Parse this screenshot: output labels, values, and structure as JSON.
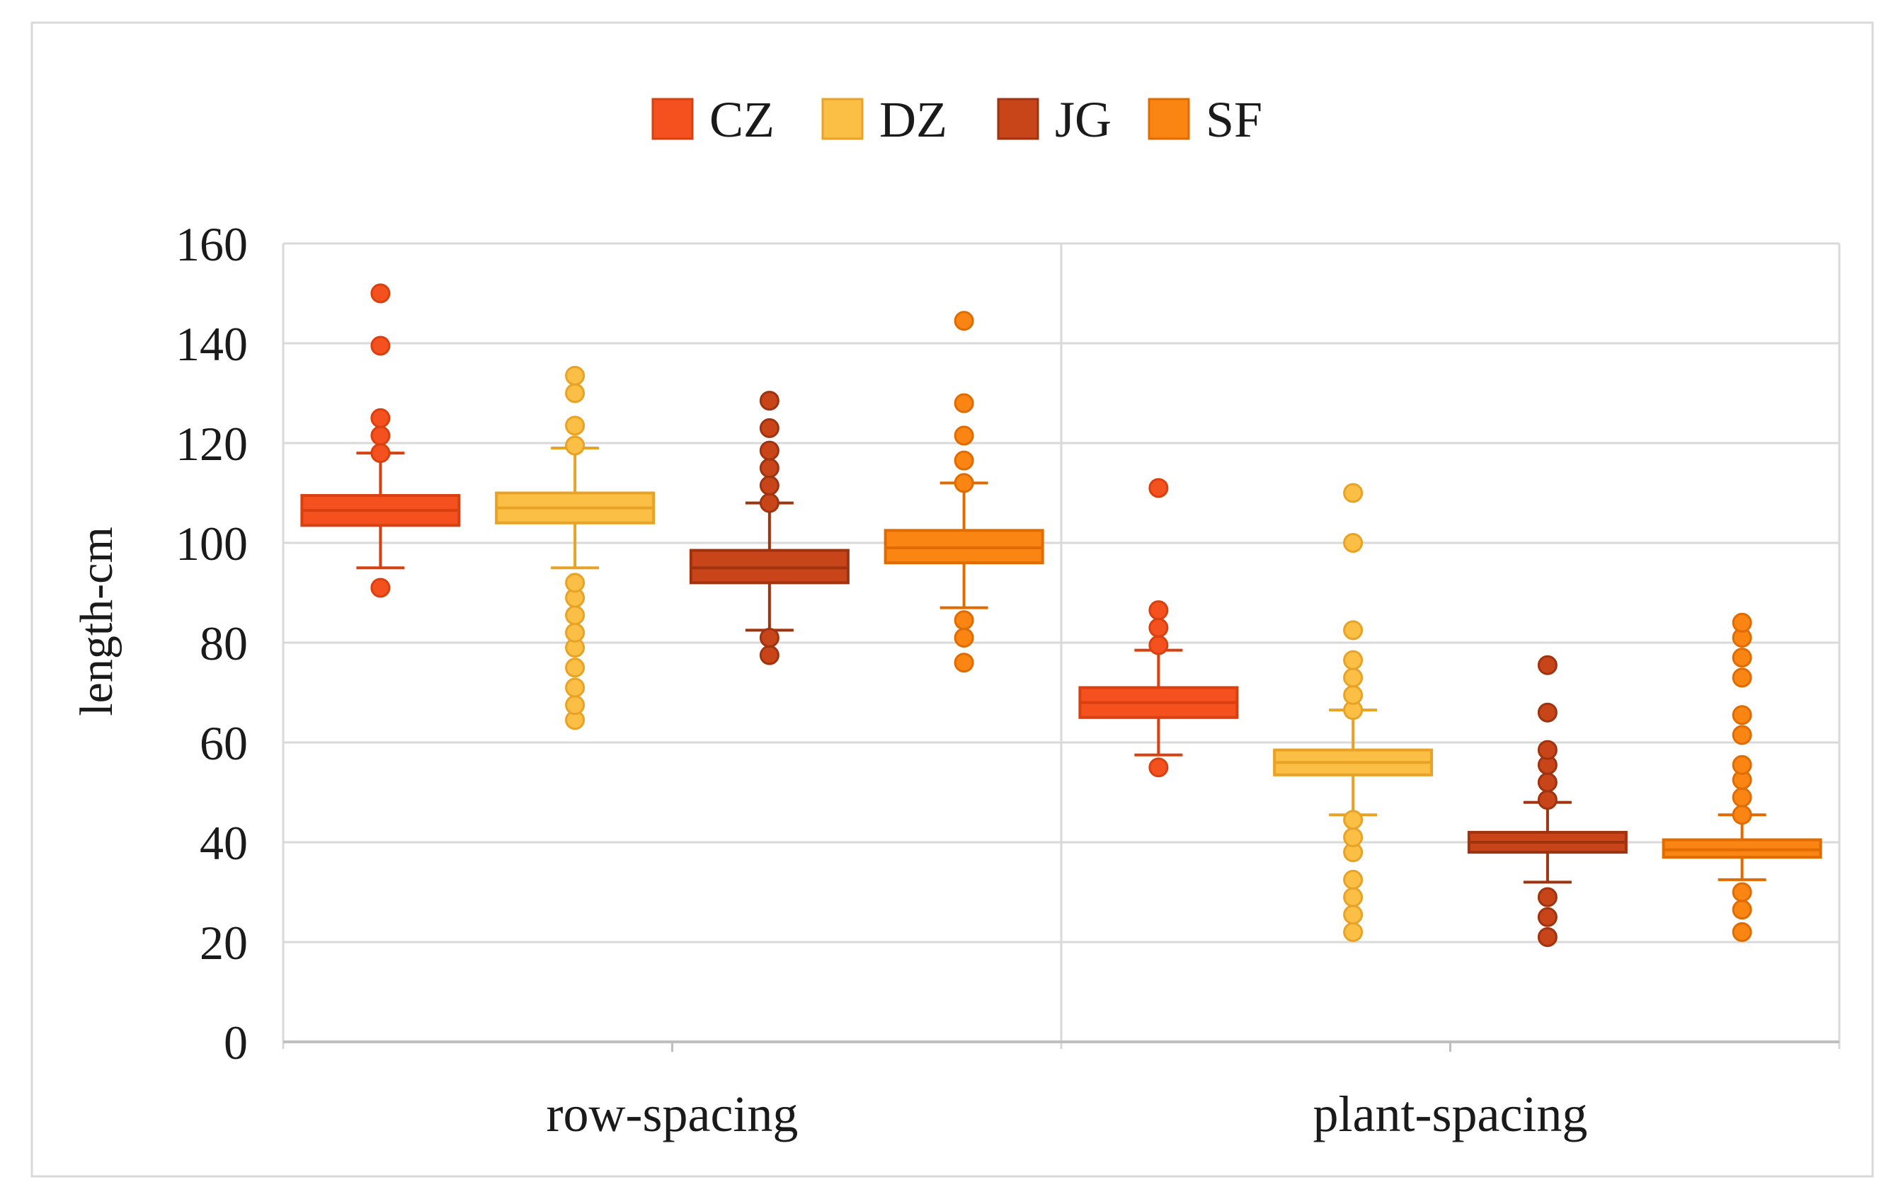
{
  "chart_data": {
    "type": "boxplot",
    "title": "",
    "xlabel": "",
    "ylabel": "length-cm",
    "ylim": [
      0,
      160
    ],
    "yticks": [
      0,
      20,
      40,
      60,
      80,
      100,
      120,
      140,
      160
    ],
    "grid": true,
    "legend_position": "top-center",
    "categories": [
      "row-spacing",
      "plant-spacing"
    ],
    "series": [
      {
        "name": "CZ",
        "color": "#f4511e",
        "stroke": "#d8400f",
        "boxes": [
          {
            "whisker_low": 95,
            "q1": 103.5,
            "median": 106.5,
            "q3": 109.5,
            "whisker_high": 118,
            "outliers": [
              91,
              118,
              121.5,
              125,
              139.5,
              150
            ]
          },
          {
            "whisker_low": 57.5,
            "q1": 65,
            "median": 68,
            "q3": 71,
            "whisker_high": 78.5,
            "outliers": [
              55,
              79.5,
              83,
              86.5,
              111
            ]
          }
        ]
      },
      {
        "name": "DZ",
        "color": "#fbbf45",
        "stroke": "#e8a225",
        "boxes": [
          {
            "whisker_low": 95,
            "q1": 104,
            "median": 107,
            "q3": 110,
            "whisker_high": 119,
            "outliers": [
              64.5,
              67.5,
              71,
              75,
              79,
              82,
              85.5,
              89,
              92,
              119.5,
              123.5,
              130,
              133.5
            ]
          },
          {
            "whisker_low": 45.5,
            "q1": 53.5,
            "median": 56,
            "q3": 58.5,
            "whisker_high": 66.5,
            "outliers": [
              22,
              25.5,
              29,
              32.5,
              38,
              41,
              44.5,
              66.5,
              69.5,
              73,
              76.5,
              82.5,
              100,
              110
            ]
          }
        ]
      },
      {
        "name": "JG",
        "color": "#c8451a",
        "stroke": "#a0330f",
        "boxes": [
          {
            "whisker_low": 82.5,
            "q1": 92,
            "median": 95,
            "q3": 98.5,
            "whisker_high": 108,
            "outliers": [
              77.5,
              81,
              108,
              111.5,
              115,
              118.5,
              123,
              128.5
            ]
          },
          {
            "whisker_low": 32,
            "q1": 38,
            "median": 40,
            "q3": 42,
            "whisker_high": 48,
            "outliers": [
              21,
              25,
              29,
              48.5,
              52,
              55.5,
              58.5,
              66,
              75.5
            ]
          }
        ]
      },
      {
        "name": "SF",
        "color": "#fb8512",
        "stroke": "#e06c00",
        "boxes": [
          {
            "whisker_low": 87,
            "q1": 96,
            "median": 99,
            "q3": 102.5,
            "whisker_high": 112,
            "outliers": [
              76,
              81,
              84.5,
              112,
              116.5,
              121.5,
              128,
              144.5
            ]
          },
          {
            "whisker_low": 32.5,
            "q1": 37,
            "median": 38.5,
            "q3": 40.5,
            "whisker_high": 45.5,
            "outliers": [
              22,
              26.5,
              30,
              45.5,
              49,
              52.5,
              55.5,
              61.5,
              65.5,
              73,
              77,
              81,
              84
            ]
          }
        ]
      }
    ]
  }
}
